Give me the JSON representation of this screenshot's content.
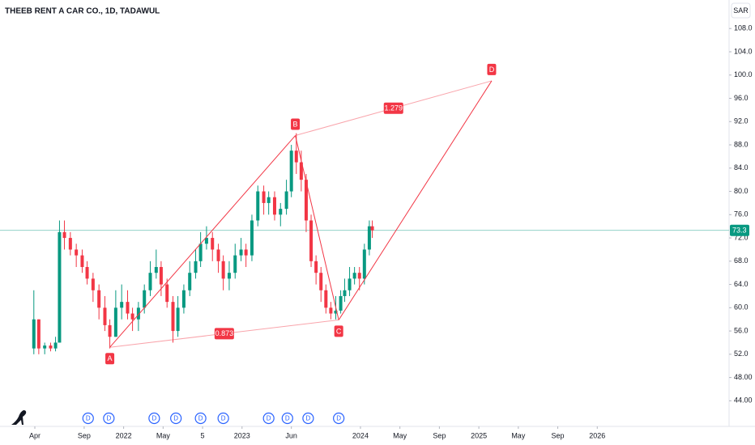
{
  "chart_data": {
    "type": "candlestick",
    "title": "THEEB RENT A CAR CO., 1D, TADAWUL",
    "currency": "SAR",
    "x": [
      2.9,
      3.4,
      4.0,
      4.6,
      5.1,
      5.5,
      6.0,
      6.6,
      7.2,
      7.8,
      8.3,
      8.9,
      9.5,
      10.1,
      10.6,
      11.2,
      11.8,
      12.4,
      12.9,
      13.5,
      14.1,
      14.7,
      15.3,
      15.8,
      16.4,
      17.0,
      17.5,
      18.1,
      18.7,
      19.3,
      19.8,
      20.4,
      21.0,
      21.6,
      22.1,
      22.7,
      23.3,
      23.9,
      24.4,
      25.0,
      25.6,
      26.2,
      26.7,
      27.3,
      27.9,
      28.5,
      29.0,
      29.5,
      30.0,
      30.5,
      31.0,
      31.5,
      32.0,
      32.5,
      33.0,
      33.5,
      34.0,
      34.4,
      34.9,
      35.4,
      35.9,
      36.4,
      36.9,
      37.2
    ],
    "open": [
      53,
      58,
      53,
      53.5,
      53,
      54,
      73,
      72,
      70,
      69,
      67,
      65,
      63,
      60,
      57,
      55,
      60,
      61,
      59,
      58,
      60,
      63,
      66,
      67,
      64,
      61,
      56,
      60,
      63,
      66,
      68,
      71,
      72,
      70,
      68,
      65,
      66,
      69,
      70,
      69,
      75,
      80,
      78,
      79,
      76,
      77,
      80,
      87,
      85,
      82,
      75,
      68,
      66,
      63,
      60,
      59,
      59.5,
      62,
      63,
      65,
      66,
      65,
      70,
      74
    ],
    "high": [
      63,
      58,
      54,
      54,
      55,
      75,
      75,
      73,
      71,
      70,
      68,
      66,
      64,
      62,
      58,
      63,
      64,
      63,
      60,
      61,
      64,
      68,
      70,
      68,
      65,
      62,
      62,
      64,
      68,
      70,
      73,
      74,
      73,
      71,
      69,
      68,
      71,
      72,
      71,
      76,
      81,
      81,
      80,
      80,
      78,
      82,
      88,
      90,
      87,
      83,
      76,
      69,
      67,
      64,
      61,
      62,
      63,
      65,
      67,
      67,
      67,
      71,
      75,
      75
    ],
    "low": [
      52,
      52,
      52,
      52.5,
      52.5,
      54,
      70,
      69,
      67,
      66,
      64,
      61,
      58,
      56,
      53,
      55,
      58,
      58,
      56,
      56,
      59,
      62,
      65,
      62,
      60,
      54,
      55,
      59,
      62,
      65,
      67,
      70,
      68,
      66,
      63,
      63,
      65,
      68,
      67,
      68,
      74,
      76,
      76,
      75,
      74,
      76,
      79,
      83,
      80,
      73,
      67,
      64,
      61,
      59,
      58,
      58,
      59,
      61,
      62,
      64,
      63,
      64,
      69,
      72
    ],
    "close": [
      58,
      53,
      53.5,
      53,
      54,
      73,
      72,
      70,
      69,
      67,
      65,
      63,
      60,
      57,
      55,
      60,
      61,
      59,
      58,
      60,
      63,
      66,
      67,
      64,
      61,
      56,
      60,
      63,
      66,
      68,
      71,
      72,
      70,
      68,
      65,
      66,
      69,
      70,
      69,
      75,
      80,
      78,
      79,
      76,
      77,
      80,
      87,
      85,
      82,
      75,
      68,
      66,
      63,
      60,
      59,
      59.5,
      62,
      63,
      65,
      66,
      65,
      70,
      74,
      73.3
    ],
    "up_color": "#089981",
    "down_color": "#f23645",
    "last_price": 73.3,
    "pattern": {
      "color": "#f23645",
      "points": [
        {
          "label": "A",
          "x": 10.6,
          "y": 53.2
        },
        {
          "label": "B",
          "x": 29.4,
          "y": 89.6
        },
        {
          "label": "C",
          "x": 33.8,
          "y": 57.9
        },
        {
          "label": "D",
          "x": 49.3,
          "y": 99.0
        }
      ],
      "ratios": [
        0.873,
        1.279
      ]
    },
    "dividends": {
      "label": "D",
      "x": [
        8.4,
        10.5,
        15.1,
        17.3,
        19.8,
        22.1,
        26.7,
        28.6,
        30.7,
        33.8
      ]
    },
    "xlim": [
      -0.53,
      73.36
    ],
    "ylim": [
      39.6,
      112.9
    ],
    "xticks": [
      {
        "value": 3,
        "label": "Apr"
      },
      {
        "value": 8,
        "label": "Sep"
      },
      {
        "value": 12,
        "label": "2022"
      },
      {
        "value": 16,
        "label": "May"
      },
      {
        "value": 20,
        "label": "5"
      },
      {
        "value": 24,
        "label": "2023"
      },
      {
        "value": 29,
        "label": "Jun"
      },
      {
        "value": 36,
        "label": "2024"
      },
      {
        "value": 40,
        "label": "May"
      },
      {
        "value": 44,
        "label": "Sep"
      },
      {
        "value": 48,
        "label": "2025"
      },
      {
        "value": 52,
        "label": "May"
      },
      {
        "value": 56,
        "label": "Sep"
      },
      {
        "value": 60,
        "label": "2026"
      }
    ],
    "yticks": [
      {
        "value": 44,
        "label": "44.00"
      },
      {
        "value": 48,
        "label": "48.00"
      },
      {
        "value": 52,
        "label": "52.0"
      },
      {
        "value": 56,
        "label": "56.0"
      },
      {
        "value": 60,
        "label": "60.0"
      },
      {
        "value": 64,
        "label": "64.0"
      },
      {
        "value": 68,
        "label": "68.0"
      },
      {
        "value": 72,
        "label": "72.0"
      },
      {
        "value": 76,
        "label": "76.0"
      },
      {
        "value": 80,
        "label": "80.0"
      },
      {
        "value": 84,
        "label": "84.0"
      },
      {
        "value": 88,
        "label": "88.0"
      },
      {
        "value": 92,
        "label": "92.0"
      },
      {
        "value": 96,
        "label": "96.0"
      },
      {
        "value": 100,
        "label": "100.0"
      },
      {
        "value": 104,
        "label": "104.0"
      },
      {
        "value": 108,
        "label": "108.0"
      }
    ]
  }
}
